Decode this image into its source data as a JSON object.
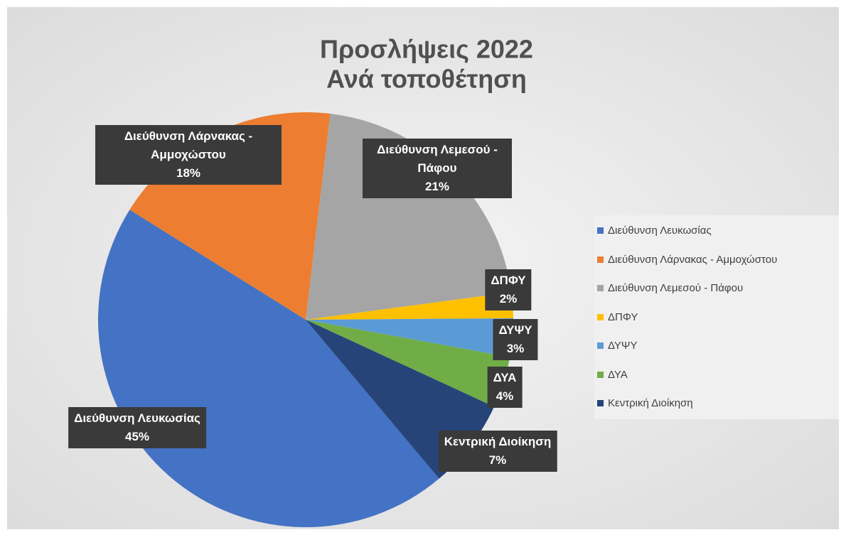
{
  "chart_data": {
    "type": "pie",
    "title": [
      "Προσλήψεις 2022",
      "Ανά τοποθέτηση"
    ],
    "categories": [
      "Διεύθυνση Λευκωσίας",
      "Διεύθυνση Λάρνακας - Αμμοχώστου",
      "Διεύθυνση Λεμεσού - Πάφου",
      "ΔΠΦΥ",
      "ΔΥΨΥ",
      "ΔΥΑ",
      "Κεντρική Διοίκηση"
    ],
    "values": [
      45,
      18,
      21,
      2,
      3,
      4,
      7
    ],
    "value_labels": [
      "45%",
      "18%",
      "21%",
      "2%",
      "3%",
      "4%",
      "7%"
    ],
    "colors": [
      "#4472c4",
      "#ed7d31",
      "#a5a5a5",
      "#ffc000",
      "#5b9bd5",
      "#70ad47",
      "#264478"
    ],
    "legend": "right"
  }
}
